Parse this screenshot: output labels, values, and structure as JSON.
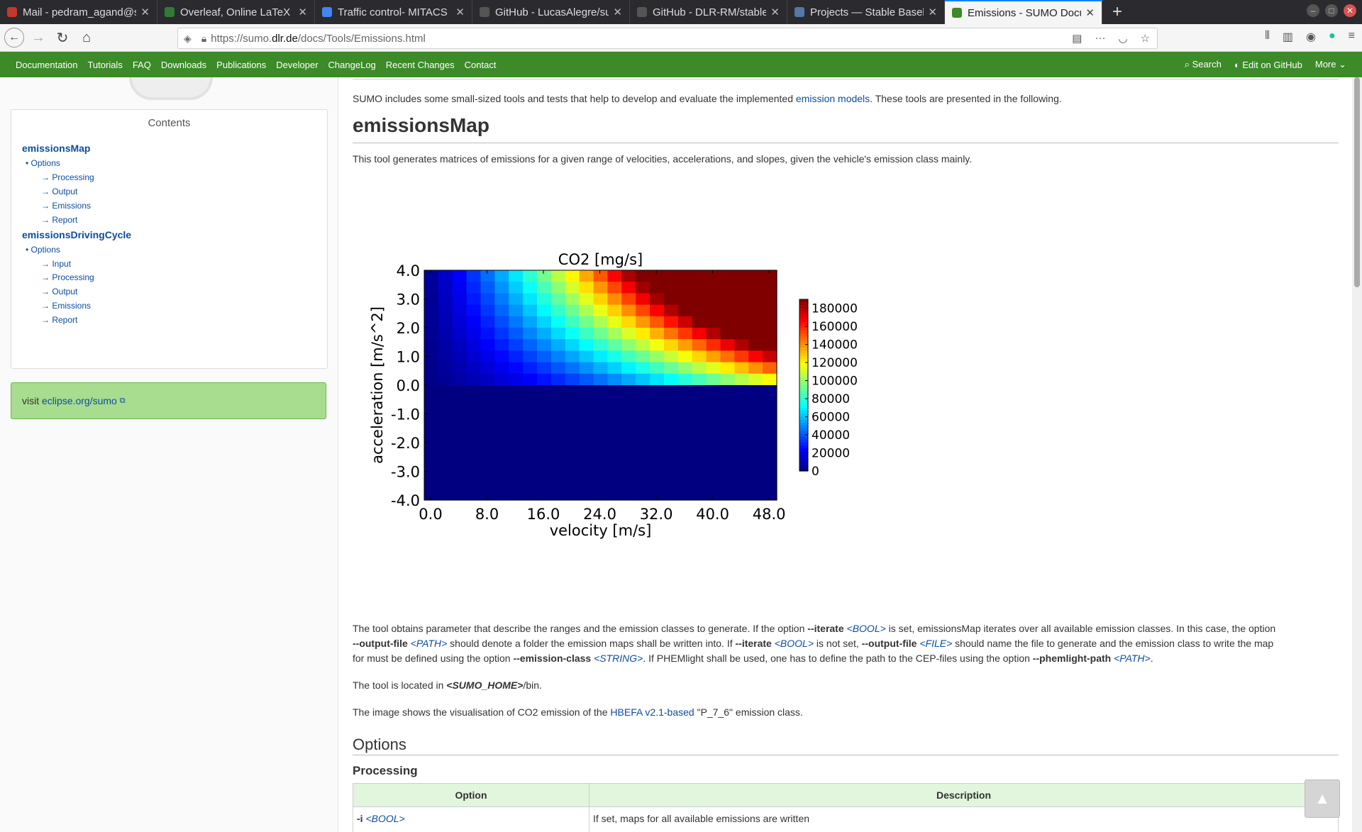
{
  "browser": {
    "tabs": [
      {
        "label": "Mail - pedram_agand@s",
        "icon_color": "#c0392b",
        "active": false
      },
      {
        "label": "Overleaf, Online LaTeX E",
        "icon_color": "#2e7d32",
        "active": false
      },
      {
        "label": "Traffic control- MITACS",
        "icon_color": "#4285f4",
        "active": false
      },
      {
        "label": "GitHub - LucasAlegre/su",
        "icon_color": "#555555",
        "active": false
      },
      {
        "label": "GitHub - DLR-RM/stable",
        "icon_color": "#555555",
        "active": false
      },
      {
        "label": "Projects — Stable Basel",
        "icon_color": "#5577aa",
        "active": false
      },
      {
        "label": "Emissions - SUMO Docu",
        "icon_color": "#3c8a28",
        "active": true
      }
    ],
    "url_prefix": "https://sumo.",
    "url_domain": "dlr.de",
    "url_path": "/docs/Tools/Emissions.html"
  },
  "sitenav": {
    "items": [
      "Documentation",
      "Tutorials",
      "FAQ",
      "Downloads",
      "Publications",
      "Developer",
      "ChangeLog",
      "Recent Changes",
      "Contact"
    ],
    "search": "Search",
    "edit": "Edit on GitHub",
    "more": "More"
  },
  "sidebar": {
    "contents_title": "Contents",
    "toc": [
      {
        "level": 1,
        "label": "emissionsMap"
      },
      {
        "level": 2,
        "label": "• Options"
      },
      {
        "level": 3,
        "label": "→ Processing"
      },
      {
        "level": 3,
        "label": "→ Output"
      },
      {
        "level": 3,
        "label": "→ Emissions"
      },
      {
        "level": 3,
        "label": "→ Report"
      },
      {
        "level": 1,
        "label": "emissionsDrivingCycle"
      },
      {
        "level": 2,
        "label": "• Options"
      },
      {
        "level": 3,
        "label": "→ Input"
      },
      {
        "level": 3,
        "label": "→ Processing"
      },
      {
        "level": 3,
        "label": "→ Output"
      },
      {
        "level": 3,
        "label": "→ Emissions"
      },
      {
        "level": 3,
        "label": "→ Report"
      }
    ],
    "visit_prefix": "visit ",
    "visit_link": "eclipse.org/sumo"
  },
  "main": {
    "intro_a": "SUMO includes some small-sized tools and tests that help to develop and evaluate the implemented ",
    "intro_link": "emission models",
    "intro_b": ". These tools are presented in the following.",
    "h_emissionsmap": "emissionsMap",
    "desc": "This tool generates matrices of emissions for a given range of velocities, accelerations, and slopes, given the vehicle's emission class mainly.",
    "para_1": "The tool obtains parameter that describe the ranges and the emission classes to generate. If the option ",
    "opt_iterate": "--iterate",
    "param_bool": "<BOOL>",
    "para_2": " is set, emissionsMap iterates over all available emission classes. In this case, the option",
    "opt_output_file": "--output-file",
    "param_path": "<PATH>",
    "para_3": " should denote a folder the emission maps shall be written into. If ",
    "para_4": " is not set, ",
    "param_file": "<FILE>",
    "para_5": " should name the file to generate and the emission class to write the map",
    "para_6": "for must be defined using the option ",
    "opt_emission_class": "--emission-class",
    "param_string": "<STRING>",
    "para_7": ". If PHEMlight shall be used, one has to define the path to the CEP-files using the option ",
    "opt_phemlight": "--phemlight-path",
    "para_8": ".",
    "located_a": "The tool is located in ",
    "located_b": "<SUMO_HOME>",
    "located_c": "/bin.",
    "image_a": "The image shows the visualisation of CO2 emission of the ",
    "image_link": "HBEFA v2.1-based",
    "image_b": " \"P_7_6\" emission class.",
    "h_options": "Options",
    "h_processing": "Processing",
    "table_headers": [
      "Option",
      "Description"
    ],
    "table_row_option": "-i",
    "table_row_desc": "If set, maps for all available emissions are written"
  },
  "chart_data": {
    "type": "heatmap",
    "title": "CO2 [mg/s]",
    "xlabel": "velocity [m/s]",
    "ylabel": "acceleration [m/s^2]",
    "x_ticks": [
      "0.0",
      "8.0",
      "16.0",
      "24.0",
      "32.0",
      "40.0",
      "48.0"
    ],
    "y_ticks": [
      "4.0",
      "3.0",
      "2.0",
      "1.0",
      "0.0",
      "-1.0",
      "-2.0",
      "-3.0",
      "-4.0"
    ],
    "xlim": [
      0,
      50
    ],
    "ylim": [
      -4,
      4
    ],
    "colorbar_ticks": [
      "180000",
      "160000",
      "140000",
      "120000",
      "100000",
      "80000",
      "60000",
      "40000",
      "20000",
      "0"
    ],
    "colorbar_range": [
      0,
      190000
    ],
    "colormap": "jet",
    "x_cells": 25,
    "y_cells": 20
  }
}
